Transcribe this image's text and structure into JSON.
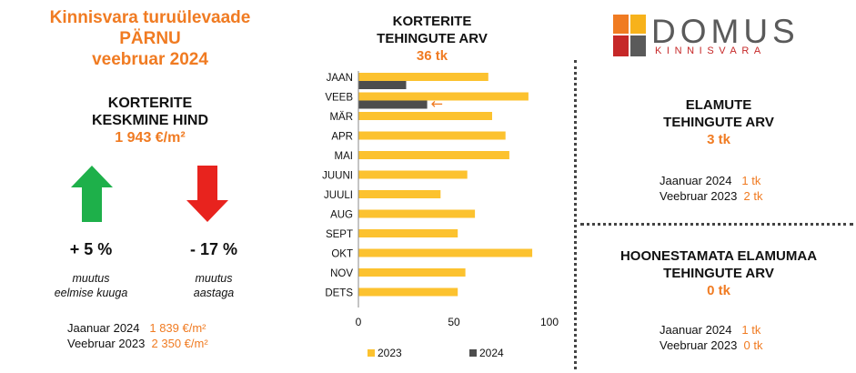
{
  "header": {
    "title_line1": "Kinnisvara turuülevaade",
    "title_line2": "PÄRNU",
    "title_line3": "veebruar 2024"
  },
  "avg_price": {
    "title_line1": "KORTERITE",
    "title_line2": "KESKMINE HIND",
    "value": "1 943 €/m²"
  },
  "changes": {
    "monthly": {
      "value": "+ 5 %",
      "note_line1": "muutus",
      "note_line2": "eelmise kuuga",
      "arrow_color": "#1eb04a",
      "icon": "arrow-up-icon"
    },
    "yearly": {
      "value": "- 17 %",
      "note_line1": "muutus",
      "note_line2": "aastaga",
      "arrow_color": "#e8231e",
      "icon": "arrow-down-icon"
    }
  },
  "price_comparison": [
    {
      "label": "Jaanuar 2024",
      "value": "1 839 €/m²"
    },
    {
      "label": "Veebruar 2023",
      "value": "2 350 €/m²"
    }
  ],
  "chart_header": {
    "title_line1": "KORTERITE",
    "title_line2": "TEHINGUTE ARV",
    "value": "36 tk"
  },
  "chart_data": {
    "type": "bar",
    "orientation": "horizontal",
    "categories": [
      "JAAN",
      "VEEB",
      "MÄR",
      "APR",
      "MAI",
      "JUUNI",
      "JUULI",
      "AUG",
      "SEPT",
      "OKT",
      "NOV",
      "DETS"
    ],
    "series": [
      {
        "name": "2023",
        "color": "#fcc22f",
        "values": [
          68,
          89,
          70,
          77,
          79,
          57,
          43,
          61,
          52,
          91,
          56,
          52
        ]
      },
      {
        "name": "2024",
        "color": "#4d4d4d",
        "values": [
          25,
          36,
          null,
          null,
          null,
          null,
          null,
          null,
          null,
          null,
          null,
          null
        ]
      }
    ],
    "xlim": [
      0,
      100
    ],
    "xticks": [
      0,
      50,
      100
    ],
    "legend": "bottom",
    "grid": false,
    "annotation": {
      "text": "←",
      "category": "VEEB",
      "color": "#f07b22"
    }
  },
  "logo": {
    "name": "DOMUS",
    "sub": "KINNISVARA",
    "colors": [
      "#f07b22",
      "#c62828",
      "#f7b21b",
      "#5a5a5a"
    ]
  },
  "houses": {
    "title_line1": "ELAMUTE",
    "title_line2": "TEHINGUTE ARV",
    "value": "3 tk",
    "rows": [
      {
        "label": "Jaanuar 2024",
        "value": "1 tk"
      },
      {
        "label": "Veebruar 2023",
        "value": "2 tk"
      }
    ]
  },
  "land": {
    "title_line1": "HOONESTAMATA ELAMUMAA",
    "title_line2": "TEHINGUTE ARV",
    "value": "0 tk",
    "rows": [
      {
        "label": "Jaanuar 2024",
        "value": "1 tk"
      },
      {
        "label": "Veebruar 2023",
        "value": "0 tk"
      }
    ]
  }
}
